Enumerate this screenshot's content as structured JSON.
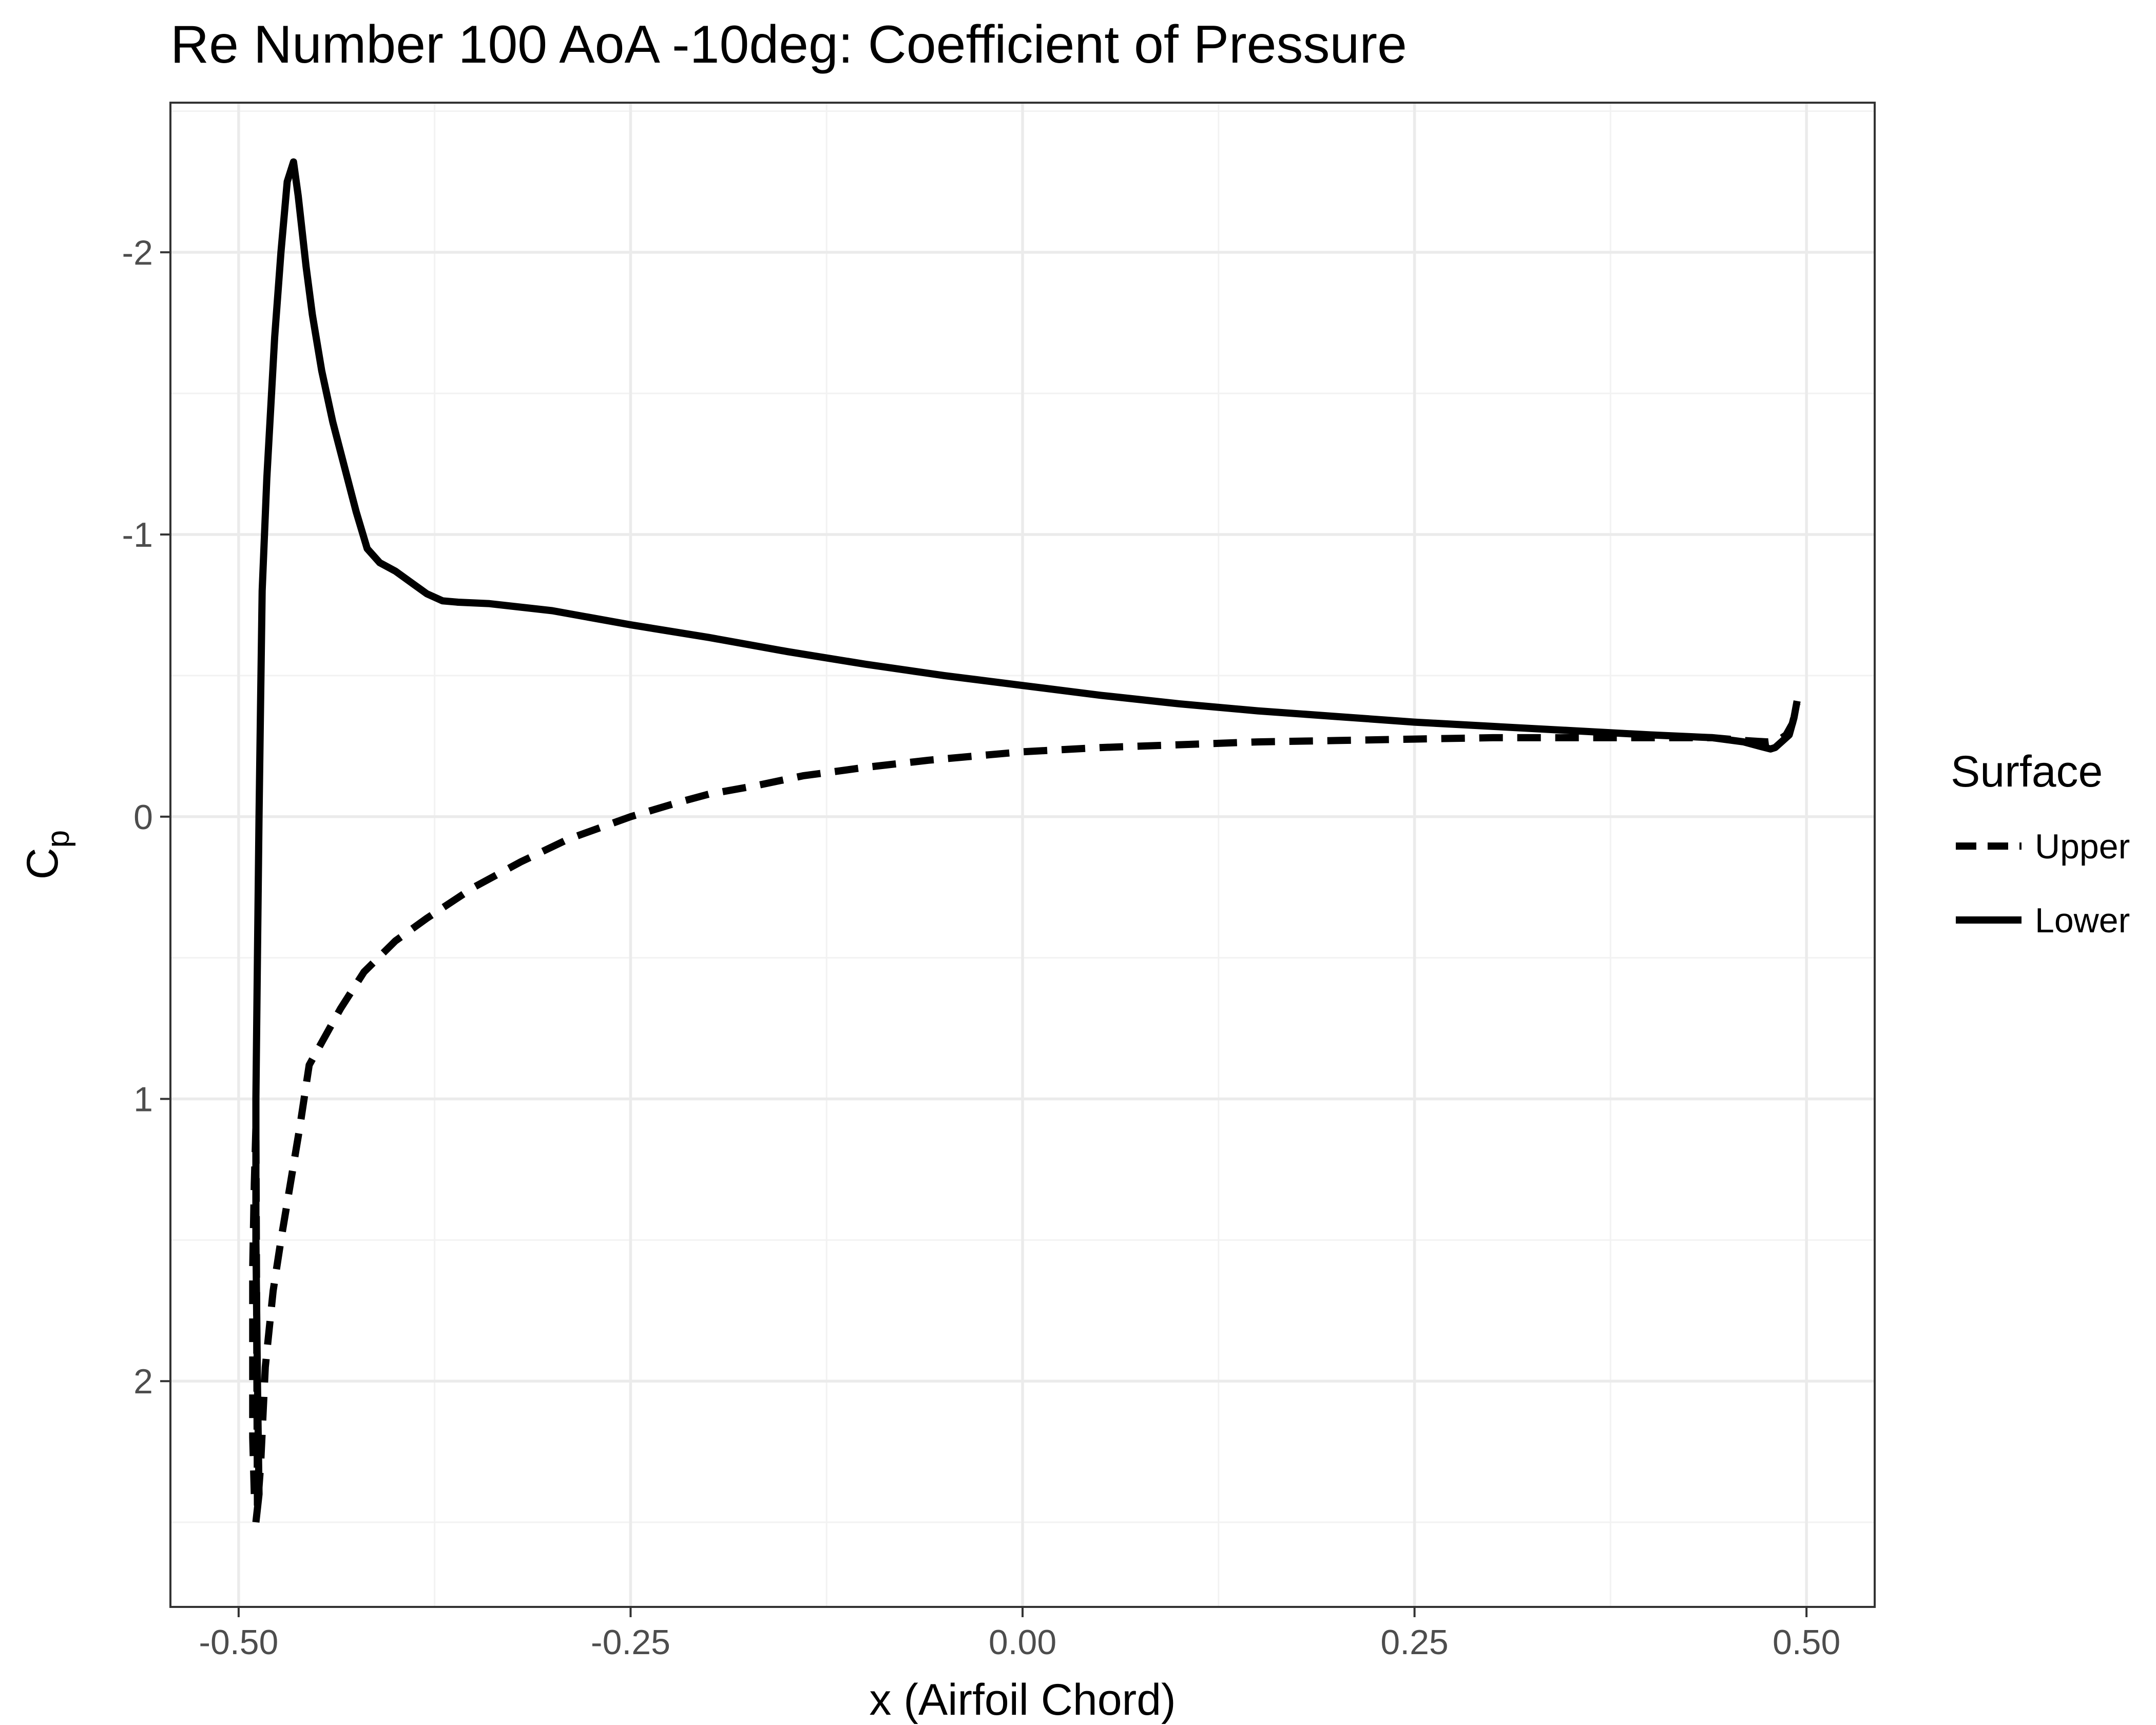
{
  "chart_data": {
    "type": "line",
    "title": "Re Number 100 AoA -10deg: Coefficient of Pressure",
    "xlabel": "x (Airfoil Chord)",
    "ylabel": "C",
    "ylabel_subscript": "p",
    "xlim": [
      -0.5435,
      0.5435
    ],
    "ylim": [
      2.8,
      -2.53
    ],
    "y_reversed": true,
    "grid": true,
    "x_ticks": [
      -0.5,
      -0.25,
      0.0,
      0.25,
      0.5
    ],
    "x_tick_labels": [
      "-0.50",
      "-0.25",
      "0.00",
      "0.25",
      "0.50"
    ],
    "y_ticks": [
      -2,
      -1,
      0,
      1,
      2
    ],
    "y_tick_labels": [
      "-2",
      "-1",
      "0",
      "1",
      "2"
    ],
    "legend": {
      "title": "Surface",
      "position": "right"
    },
    "series": [
      {
        "name": "Upper",
        "dash": "dashed",
        "points": [
          [
            -0.49,
            2.4
          ],
          [
            -0.491,
            2.2
          ],
          [
            -0.491,
            1.9
          ],
          [
            -0.491,
            1.6
          ],
          [
            -0.49,
            1.3
          ],
          [
            -0.489,
            1.1
          ],
          [
            -0.488,
            2.45
          ],
          [
            -0.486,
            2.3
          ],
          [
            -0.483,
            1.95
          ],
          [
            -0.478,
            1.68
          ],
          [
            -0.473,
            1.5
          ],
          [
            -0.467,
            1.3
          ],
          [
            -0.461,
            1.1
          ],
          [
            -0.455,
            0.88
          ],
          [
            -0.445,
            0.78
          ],
          [
            -0.435,
            0.68
          ],
          [
            -0.42,
            0.55
          ],
          [
            -0.4,
            0.44
          ],
          [
            -0.38,
            0.36
          ],
          [
            -0.35,
            0.25
          ],
          [
            -0.32,
            0.16
          ],
          [
            -0.29,
            0.08
          ],
          [
            -0.25,
            0.0
          ],
          [
            -0.22,
            -0.05
          ],
          [
            -0.2,
            -0.08
          ],
          [
            -0.17,
            -0.11
          ],
          [
            -0.14,
            -0.145
          ],
          [
            -0.1,
            -0.175
          ],
          [
            -0.06,
            -0.2
          ],
          [
            -0.02,
            -0.22
          ],
          [
            0.0,
            -0.23
          ],
          [
            0.05,
            -0.245
          ],
          [
            0.1,
            -0.255
          ],
          [
            0.15,
            -0.265
          ],
          [
            0.2,
            -0.27
          ],
          [
            0.25,
            -0.275
          ],
          [
            0.3,
            -0.28
          ],
          [
            0.35,
            -0.28
          ],
          [
            0.4,
            -0.28
          ],
          [
            0.44,
            -0.28
          ],
          [
            0.46,
            -0.27
          ],
          [
            0.475,
            -0.265
          ],
          [
            0.482,
            -0.27
          ],
          [
            0.487,
            -0.29
          ],
          [
            0.491,
            -0.33
          ],
          [
            0.494,
            -0.4
          ]
        ]
      },
      {
        "name": "Lower",
        "dash": "solid",
        "points": [
          [
            -0.489,
            2.5
          ],
          [
            -0.487,
            2.4
          ],
          [
            -0.488,
            2.0
          ],
          [
            -0.489,
            1.5
          ],
          [
            -0.489,
            1.0
          ],
          [
            -0.488,
            0.5
          ],
          [
            -0.487,
            0.0
          ],
          [
            -0.486,
            -0.4
          ],
          [
            -0.485,
            -0.8
          ],
          [
            -0.482,
            -1.2
          ],
          [
            -0.477,
            -1.7
          ],
          [
            -0.473,
            -2.0
          ],
          [
            -0.469,
            -2.25
          ],
          [
            -0.465,
            -2.32
          ],
          [
            -0.462,
            -2.2
          ],
          [
            -0.457,
            -1.95
          ],
          [
            -0.453,
            -1.78
          ],
          [
            -0.447,
            -1.58
          ],
          [
            -0.44,
            -1.4
          ],
          [
            -0.433,
            -1.25
          ],
          [
            -0.425,
            -1.08
          ],
          [
            -0.418,
            -0.95
          ],
          [
            -0.41,
            -0.9
          ],
          [
            -0.4,
            -0.87
          ],
          [
            -0.39,
            -0.83
          ],
          [
            -0.38,
            -0.79
          ],
          [
            -0.37,
            -0.765
          ],
          [
            -0.36,
            -0.76
          ],
          [
            -0.34,
            -0.755
          ],
          [
            -0.3,
            -0.73
          ],
          [
            -0.25,
            -0.68
          ],
          [
            -0.2,
            -0.635
          ],
          [
            -0.15,
            -0.585
          ],
          [
            -0.1,
            -0.54
          ],
          [
            -0.05,
            -0.5
          ],
          [
            0.0,
            -0.465
          ],
          [
            0.05,
            -0.43
          ],
          [
            0.1,
            -0.4
          ],
          [
            0.15,
            -0.375
          ],
          [
            0.2,
            -0.355
          ],
          [
            0.25,
            -0.335
          ],
          [
            0.3,
            -0.32
          ],
          [
            0.35,
            -0.305
          ],
          [
            0.4,
            -0.29
          ],
          [
            0.44,
            -0.28
          ],
          [
            0.46,
            -0.265
          ],
          [
            0.47,
            -0.25
          ],
          [
            0.477,
            -0.24
          ],
          [
            0.48,
            -0.245
          ],
          [
            0.485,
            -0.27
          ],
          [
            0.489,
            -0.29
          ],
          [
            0.492,
            -0.35
          ],
          [
            0.494,
            -0.41
          ]
        ]
      }
    ]
  }
}
